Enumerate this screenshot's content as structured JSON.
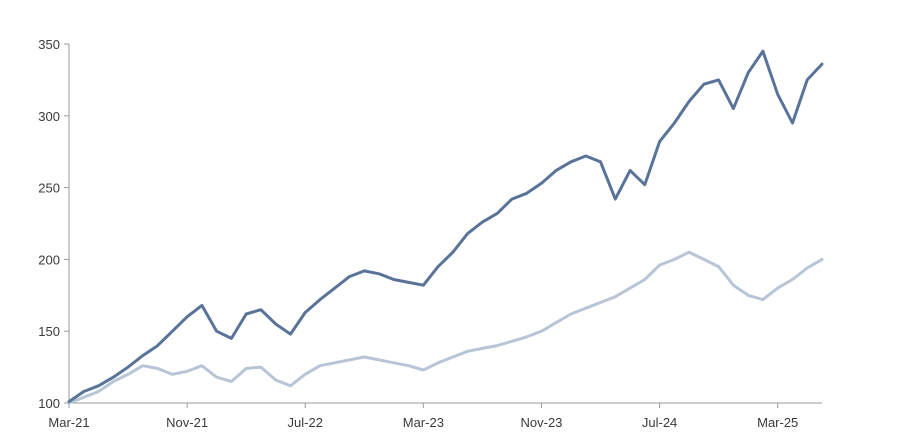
{
  "chart_data": {
    "type": "line",
    "title": "",
    "xlabel": "",
    "ylabel": "",
    "ylim": [
      100,
      350
    ],
    "xlim": [
      "2021-03",
      "2025-06"
    ],
    "grid": false,
    "legend": "none",
    "y_ticks": [
      100,
      150,
      200,
      250,
      300,
      350
    ],
    "y_tick_labels": [
      "100",
      "150",
      "200",
      "250",
      "300",
      "350"
    ],
    "x_ticks": [
      "2021-03",
      "2021-11",
      "2022-07",
      "2023-03",
      "2023-11",
      "2024-07",
      "2025-03"
    ],
    "x_tick_labels": [
      "Mar-21",
      "Nov-21",
      "Jul-22",
      "Mar-23",
      "Nov-23",
      "Jul-24",
      "Mar-25"
    ],
    "series": [
      {
        "color": "#5a7398",
        "x": [
          "2021-03",
          "2021-04",
          "2021-05",
          "2021-06",
          "2021-07",
          "2021-08",
          "2021-09",
          "2021-10",
          "2021-11",
          "2021-12",
          "2022-01",
          "2022-02",
          "2022-03",
          "2022-04",
          "2022-05",
          "2022-06",
          "2022-07",
          "2022-08",
          "2022-09",
          "2022-10",
          "2022-11",
          "2022-12",
          "2023-01",
          "2023-02",
          "2023-03",
          "2023-04",
          "2023-05",
          "2023-06",
          "2023-07",
          "2023-08",
          "2023-09",
          "2023-10",
          "2023-11",
          "2023-12",
          "2024-01",
          "2024-02",
          "2024-03",
          "2024-04",
          "2024-05",
          "2024-06",
          "2024-07",
          "2024-08",
          "2024-09",
          "2024-10",
          "2024-11",
          "2024-12",
          "2025-01",
          "2025-02",
          "2025-03",
          "2025-04",
          "2025-05",
          "2025-06"
        ],
        "values": [
          101,
          108,
          112,
          118,
          125,
          133,
          140,
          150,
          160,
          168,
          150,
          145,
          162,
          165,
          155,
          148,
          163,
          172,
          180,
          188,
          192,
          190,
          186,
          184,
          182,
          195,
          205,
          218,
          226,
          232,
          242,
          246,
          253,
          262,
          268,
          272,
          268,
          242,
          262,
          252,
          282,
          295,
          310,
          322,
          325,
          305,
          330,
          345,
          315,
          295,
          325,
          336
        ]
      },
      {
        "color": "#b7c5d6",
        "x": [
          "2021-03",
          "2021-04",
          "2021-05",
          "2021-06",
          "2021-07",
          "2021-08",
          "2021-09",
          "2021-10",
          "2021-11",
          "2021-12",
          "2022-01",
          "2022-02",
          "2022-03",
          "2022-04",
          "2022-05",
          "2022-06",
          "2022-07",
          "2022-08",
          "2022-09",
          "2022-10",
          "2022-11",
          "2022-12",
          "2023-01",
          "2023-02",
          "2023-03",
          "2023-04",
          "2023-05",
          "2023-06",
          "2023-07",
          "2023-08",
          "2023-09",
          "2023-10",
          "2023-11",
          "2023-12",
          "2024-01",
          "2024-02",
          "2024-03",
          "2024-04",
          "2024-05",
          "2024-06",
          "2024-07",
          "2024-08",
          "2024-09",
          "2024-10",
          "2024-11",
          "2024-12",
          "2025-01",
          "2025-02",
          "2025-03",
          "2025-04",
          "2025-05",
          "2025-06"
        ],
        "values": [
          100,
          104,
          108,
          115,
          120,
          126,
          124,
          120,
          122,
          126,
          118,
          115,
          124,
          125,
          116,
          112,
          120,
          126,
          128,
          130,
          132,
          130,
          128,
          126,
          123,
          128,
          132,
          136,
          138,
          140,
          143,
          146,
          150,
          156,
          162,
          166,
          170,
          174,
          180,
          186,
          196,
          200,
          205,
          200,
          195,
          182,
          175,
          172,
          180,
          186,
          194,
          200
        ]
      }
    ]
  }
}
